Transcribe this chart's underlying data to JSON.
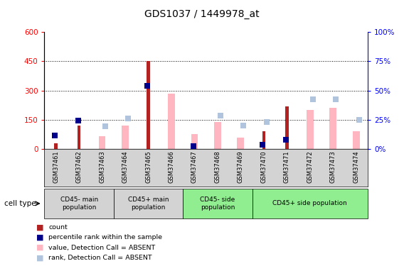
{
  "title": "GDS1037 / 1449978_at",
  "samples": [
    "GSM37461",
    "GSM37462",
    "GSM37463",
    "GSM37464",
    "GSM37465",
    "GSM37466",
    "GSM37467",
    "GSM37468",
    "GSM37469",
    "GSM37470",
    "GSM37471",
    "GSM37472",
    "GSM37473",
    "GSM37474"
  ],
  "count": [
    30,
    120,
    0,
    0,
    450,
    0,
    0,
    0,
    0,
    90,
    220,
    0,
    0,
    0
  ],
  "percentile_rank": [
    70,
    145,
    0,
    0,
    325,
    0,
    15,
    0,
    0,
    22,
    47,
    0,
    0,
    0
  ],
  "value_absent": [
    0,
    0,
    65,
    120,
    0,
    285,
    75,
    140,
    60,
    0,
    0,
    200,
    210,
    90
  ],
  "rank_absent": [
    0,
    0,
    115,
    155,
    0,
    0,
    0,
    170,
    120,
    140,
    0,
    255,
    255,
    150
  ],
  "ylim_left": [
    0,
    600
  ],
  "ylim_right": [
    0,
    100
  ],
  "yticks_left": [
    0,
    150,
    300,
    450,
    600
  ],
  "yticks_right": [
    0,
    25,
    50,
    75,
    100
  ],
  "color_count": "#b22222",
  "color_rank": "#00008b",
  "color_value_absent": "#ffb6c1",
  "color_rank_absent": "#b0c4de",
  "cell_groups": [
    {
      "samples_range": [
        0,
        2
      ],
      "label": "CD45- main\npopulation",
      "color": "#d3d3d3"
    },
    {
      "samples_range": [
        3,
        5
      ],
      "label": "CD45+ main\npopulation",
      "color": "#d3d3d3"
    },
    {
      "samples_range": [
        6,
        8
      ],
      "label": "CD45- side\npopulation",
      "color": "#90ee90"
    },
    {
      "samples_range": [
        9,
        13
      ],
      "label": "CD45+ side population",
      "color": "#90ee90"
    }
  ],
  "legend_labels": [
    "count",
    "percentile rank within the sample",
    "value, Detection Call = ABSENT",
    "rank, Detection Call = ABSENT"
  ],
  "legend_colors": [
    "#b22222",
    "#00008b",
    "#ffb6c1",
    "#b0c4de"
  ]
}
